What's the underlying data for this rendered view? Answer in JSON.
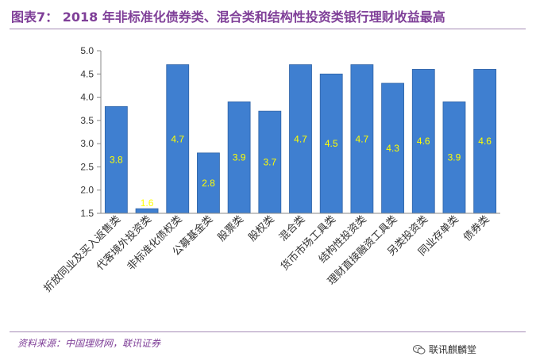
{
  "header": {
    "title": "图表7： 2018 年非标准化债券类、混合类和结构性投资类银行理财收益最高"
  },
  "footer": {
    "source": "资料来源：中国理财网，联讯证券",
    "watermark_text": "联讯麒麟堂",
    "watermark_icon": "wechat-icon"
  },
  "colors": {
    "bar": "#3f7fd0",
    "bar_stroke": "#2f63a6",
    "label": "#ffff00",
    "title": "#7f3f98"
  },
  "chart_data": {
    "type": "bar",
    "title": "",
    "xlabel": "",
    "ylabel": "",
    "ylim": [
      1.5,
      5.0
    ],
    "yticks": [
      "1.5",
      "2.0",
      "2.5",
      "3.0",
      "3.5",
      "4.0",
      "4.5",
      "5.0"
    ],
    "grid": false,
    "legend": "none",
    "categories": [
      "折放同业及买入返售类",
      "代客境外投资类",
      "非标准化债权类",
      "公募基金类",
      "股票类",
      "股权类",
      "混合类",
      "货币市场工具类",
      "结构性投资类",
      "理财直接融资工具类",
      "另类投资类",
      "同业存单类",
      "债券类"
    ],
    "values": [
      3.8,
      1.6,
      4.7,
      2.8,
      3.9,
      3.7,
      4.7,
      4.5,
      4.7,
      4.3,
      4.6,
      3.9,
      4.6
    ],
    "data_labels": [
      "3.8",
      "1.6",
      "4.7",
      "2.8",
      "3.9",
      "3.7",
      "4.7",
      "4.5",
      "4.7",
      "4.3",
      "4.6",
      "3.9",
      "4.6"
    ]
  }
}
